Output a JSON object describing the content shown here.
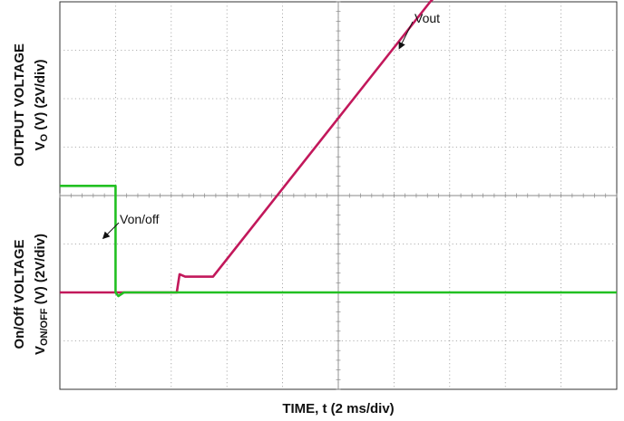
{
  "chart_data": {
    "type": "line",
    "title": "",
    "xlabel": "TIME, t (2 ms/div)",
    "ylabel_top": {
      "line1": "OUTPUT VOLTAGE",
      "line2_prefix": "V",
      "line2_sub": "O",
      "line2_suffix": " (V) (2V/div)"
    },
    "ylabel_bottom": {
      "line1": "On/Off VOLTAGE",
      "line2_prefix": "V",
      "line2_sub": "ON/OFF",
      "line2_suffix": " (V) (2V/div)"
    },
    "grid": true,
    "divisions": {
      "x": 10,
      "y": 8
    },
    "x_unit_per_div_ms": 2,
    "y_unit_per_div_V": 2,
    "xlim_ms": [
      0,
      20
    ],
    "series": [
      {
        "name": "Vout",
        "color": "#c2185b",
        "ground_div": 2.0,
        "x_ms": [
          0,
          4.2,
          4.3,
          4.5,
          5.5,
          13.3,
          13.6,
          14.0,
          20
        ],
        "y_V": [
          0,
          0,
          0.75,
          0.65,
          0.65,
          12.0,
          12.35,
          12.4,
          12.4
        ]
      },
      {
        "name": "Von/off",
        "color": "#22c022",
        "ground_div": 2.0,
        "x_ms": [
          0,
          2.0,
          2.0,
          2.1,
          2.3,
          20
        ],
        "y_V": [
          4.4,
          4.4,
          0,
          -0.15,
          0,
          0
        ]
      }
    ],
    "annotations": [
      {
        "label": "Vout",
        "series": "Vout"
      },
      {
        "label": "Von/off",
        "series": "Von/off"
      }
    ]
  }
}
